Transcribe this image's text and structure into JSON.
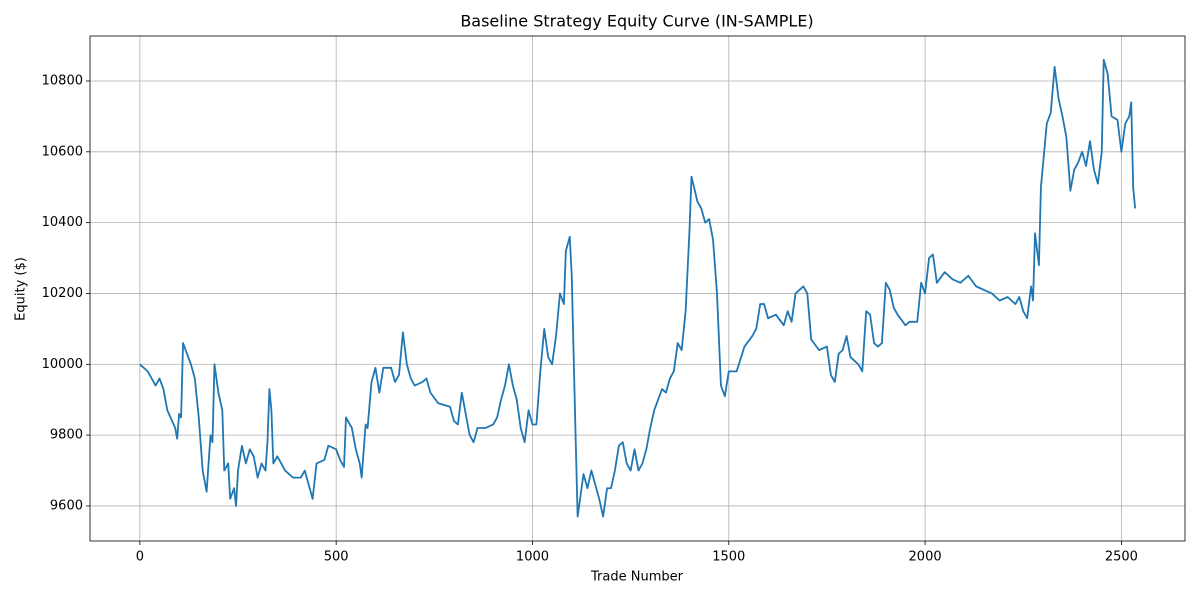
{
  "chart_data": {
    "type": "line",
    "title": "Baseline Strategy Equity Curve (IN-SAMPLE)",
    "xlabel": "Trade Number",
    "ylabel": "Equity ($)",
    "grid": true,
    "xlim": [
      -127,
      2662
    ],
    "ylim": [
      9501,
      10927
    ],
    "xticks": [
      0,
      500,
      1000,
      1500,
      2000,
      2500
    ],
    "yticks": [
      9600,
      9800,
      10000,
      10200,
      10400,
      10600,
      10800
    ],
    "x": [
      0,
      20,
      40,
      50,
      60,
      70,
      90,
      95,
      100,
      105,
      110,
      120,
      130,
      140,
      150,
      160,
      170,
      180,
      185,
      190,
      200,
      210,
      215,
      225,
      230,
      240,
      245,
      250,
      260,
      270,
      280,
      290,
      300,
      310,
      320,
      325,
      330,
      335,
      340,
      350,
      370,
      390,
      410,
      420,
      430,
      440,
      450,
      470,
      480,
      500,
      510,
      520,
      525,
      540,
      550,
      560,
      565,
      575,
      580,
      590,
      600,
      610,
      620,
      640,
      650,
      660,
      670,
      680,
      690,
      700,
      720,
      730,
      740,
      760,
      790,
      800,
      810,
      820,
      830,
      840,
      850,
      860,
      880,
      900,
      910,
      920,
      930,
      940,
      950,
      960,
      970,
      980,
      990,
      1000,
      1010,
      1020,
      1030,
      1040,
      1050,
      1060,
      1070,
      1080,
      1085,
      1095,
      1100,
      1110,
      1115,
      1130,
      1140,
      1150,
      1160,
      1170,
      1180,
      1190,
      1200,
      1210,
      1220,
      1230,
      1240,
      1250,
      1260,
      1270,
      1280,
      1290,
      1300,
      1310,
      1320,
      1330,
      1340,
      1350,
      1360,
      1370,
      1380,
      1390,
      1400,
      1405,
      1420,
      1430,
      1440,
      1450,
      1460,
      1470,
      1480,
      1490,
      1500,
      1520,
      1540,
      1560,
      1570,
      1580,
      1590,
      1600,
      1620,
      1640,
      1650,
      1660,
      1670,
      1690,
      1700,
      1710,
      1730,
      1750,
      1760,
      1770,
      1780,
      1790,
      1800,
      1810,
      1830,
      1840,
      1850,
      1860,
      1870,
      1880,
      1890,
      1900,
      1910,
      1920,
      1930,
      1950,
      1960,
      1980,
      1990,
      2000,
      2010,
      2020,
      2030,
      2050,
      2070,
      2090,
      2110,
      2130,
      2150,
      2170,
      2190,
      2210,
      2230,
      2240,
      2250,
      2260,
      2270,
      2275,
      2280,
      2290,
      2295,
      2300,
      2310,
      2320,
      2330,
      2340,
      2350,
      2360,
      2370,
      2380,
      2390,
      2400,
      2410,
      2420,
      2430,
      2440,
      2450,
      2455,
      2465,
      2475,
      2490,
      2500,
      2510,
      2520,
      2525,
      2530,
      2535
    ],
    "series": [
      {
        "name": "Equity",
        "color": "#1f77b4",
        "values": [
          10000,
          9980,
          9940,
          9960,
          9930,
          9870,
          9820,
          9790,
          9860,
          9850,
          10060,
          10030,
          10000,
          9960,
          9850,
          9700,
          9640,
          9800,
          9780,
          10000,
          9920,
          9870,
          9700,
          9720,
          9620,
          9650,
          9600,
          9700,
          9770,
          9720,
          9760,
          9740,
          9680,
          9720,
          9700,
          9780,
          9930,
          9870,
          9720,
          9740,
          9700,
          9680,
          9680,
          9700,
          9660,
          9620,
          9720,
          9730,
          9770,
          9760,
          9730,
          9710,
          9850,
          9820,
          9760,
          9720,
          9680,
          9830,
          9820,
          9950,
          9990,
          9920,
          9990,
          9990,
          9950,
          9970,
          10090,
          10000,
          9960,
          9940,
          9950,
          9960,
          9920,
          9890,
          9880,
          9840,
          9830,
          9920,
          9860,
          9800,
          9780,
          9820,
          9820,
          9830,
          9850,
          9900,
          9940,
          10000,
          9940,
          9900,
          9820,
          9780,
          9870,
          9830,
          9830,
          9980,
          10100,
          10020,
          10000,
          10080,
          10200,
          10170,
          10320,
          10360,
          10250,
          9790,
          9570,
          9690,
          9650,
          9700,
          9660,
          9620,
          9570,
          9650,
          9650,
          9700,
          9770,
          9780,
          9720,
          9700,
          9760,
          9700,
          9720,
          9760,
          9820,
          9870,
          9900,
          9930,
          9920,
          9960,
          9980,
          10060,
          10040,
          10150,
          10380,
          10530,
          10460,
          10440,
          10400,
          10410,
          10350,
          10200,
          9940,
          9910,
          9980,
          9980,
          10050,
          10080,
          10100,
          10170,
          10170,
          10130,
          10140,
          10110,
          10150,
          10120,
          10200,
          10220,
          10200,
          10070,
          10040,
          10050,
          9970,
          9950,
          10030,
          10040,
          10080,
          10020,
          10000,
          9980,
          10150,
          10140,
          10060,
          10050,
          10060,
          10230,
          10210,
          10160,
          10140,
          10110,
          10120,
          10120,
          10230,
          10200,
          10300,
          10310,
          10230,
          10260,
          10240,
          10230,
          10250,
          10220,
          10210,
          10200,
          10180,
          10190,
          10170,
          10190,
          10150,
          10130,
          10220,
          10180,
          10370,
          10280,
          10500,
          10560,
          10680,
          10710,
          10840,
          10750,
          10700,
          10640,
          10490,
          10550,
          10570,
          10600,
          10560,
          10630,
          10550,
          10510,
          10600,
          10860,
          10820,
          10700,
          10690,
          10600,
          10680,
          10700,
          10740,
          10500,
          10440
        ]
      }
    ]
  }
}
